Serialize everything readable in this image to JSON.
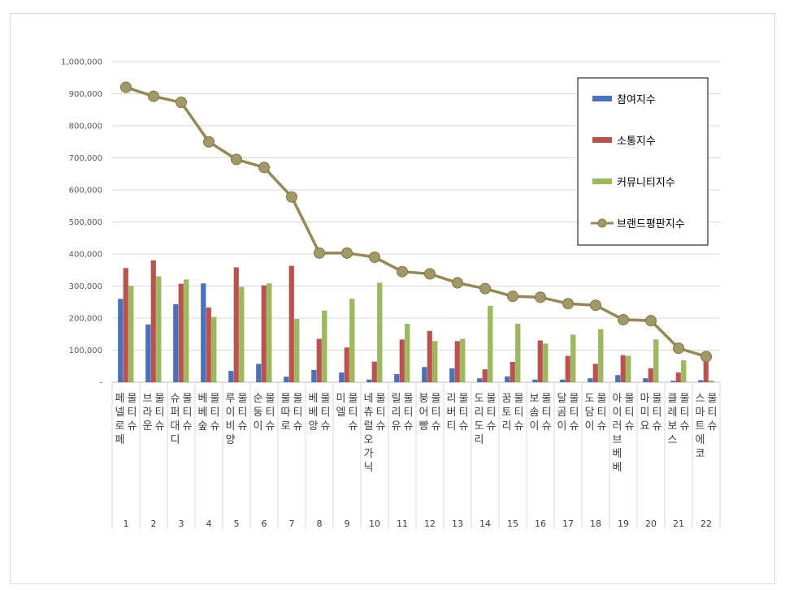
{
  "chart_data": {
    "type": "bar",
    "title": "",
    "xlabel": "",
    "ylabel": "",
    "ylim": [
      0,
      1000000
    ],
    "y_ticks": [
      "-",
      "100,000",
      "200,000",
      "300,000",
      "400,000",
      "500,000",
      "600,000",
      "700,000",
      "800,000",
      "900,000",
      "1,000,000"
    ],
    "grid": true,
    "legend_position": "top-right",
    "categories": [
      "페넬로페 물티슈",
      "브라운 물티슈",
      "슈퍼대디 물티슈",
      "베베숲 물티슈",
      "루이비양 물티슈",
      "순둥이 물티슈",
      "물따로 물티슈",
      "베베앙 물티슈",
      "미엘 물티슈",
      "네츄럴오가닉 물티슈",
      "릴리유 물티슈",
      "붕어빵 물티슈",
      "리버티 물티슈",
      "도리도리 물티슈",
      "꿈토리 물티슈",
      "보솜이 물티슈",
      "달곰이 물티슈",
      "도담이 물티슈",
      "아이러브베베 물티슈",
      "마미요 물티슈",
      "클레보스 물티슈",
      "스마트에코 물티슈"
    ],
    "ranks": [
      "1",
      "2",
      "3",
      "4",
      "5",
      "6",
      "7",
      "8",
      "9",
      "10",
      "11",
      "12",
      "13",
      "14",
      "15",
      "16",
      "17",
      "18",
      "19",
      "20",
      "21",
      "22"
    ],
    "series": [
      {
        "name": "참여지수",
        "kind": "bar",
        "color": "#4472c4",
        "values": [
          260000,
          180000,
          243000,
          308000,
          35000,
          57000,
          17000,
          38000,
          30000,
          8000,
          25000,
          47000,
          43000,
          12000,
          18000,
          8000,
          8000,
          12000,
          22000,
          12000,
          4000,
          6000
        ]
      },
      {
        "name": "소통지수",
        "kind": "bar",
        "color": "#c0504d",
        "values": [
          356000,
          380000,
          307000,
          233000,
          358000,
          302000,
          363000,
          135000,
          108000,
          64000,
          133000,
          160000,
          128000,
          40000,
          63000,
          130000,
          82000,
          57000,
          84000,
          43000,
          30000,
          65000
        ]
      },
      {
        "name": "커뮤니티지수",
        "kind": "bar",
        "color": "#9bbb59",
        "values": [
          300000,
          330000,
          320000,
          203000,
          297000,
          308000,
          197000,
          223000,
          260000,
          310000,
          182000,
          128000,
          135000,
          238000,
          182000,
          120000,
          148000,
          165000,
          82000,
          133000,
          68000,
          5000
        ]
      },
      {
        "name": "브랜드평판지수",
        "kind": "line",
        "color": "#948a54",
        "values": [
          920000,
          892000,
          873000,
          750000,
          695000,
          670000,
          578000,
          403000,
          403000,
          390000,
          345000,
          338000,
          310000,
          292000,
          268000,
          265000,
          245000,
          240000,
          195000,
          192000,
          106000,
          80000
        ]
      }
    ]
  }
}
